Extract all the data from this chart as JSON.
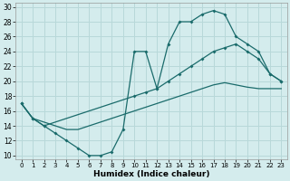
{
  "xlabel": "Humidex (Indice chaleur)",
  "bg_color": "#d4eced",
  "grid_color": "#b8d8d9",
  "line_color": "#1a6b6b",
  "xlim": [
    -0.5,
    23.5
  ],
  "ylim": [
    9.5,
    30.5
  ],
  "xticks": [
    0,
    1,
    2,
    3,
    4,
    5,
    6,
    7,
    8,
    9,
    10,
    11,
    12,
    13,
    14,
    15,
    16,
    17,
    18,
    19,
    20,
    21,
    22,
    23
  ],
  "yticks": [
    10,
    12,
    14,
    16,
    18,
    20,
    22,
    24,
    26,
    28,
    30
  ],
  "line1_x": [
    0,
    1,
    2,
    3,
    4,
    5,
    6,
    7,
    8,
    9,
    10,
    11,
    12,
    13,
    14,
    15,
    16,
    17,
    18,
    19,
    20,
    21,
    22,
    23
  ],
  "line1_y": [
    17,
    15,
    14,
    13,
    12,
    11,
    10,
    10,
    10.5,
    13.5,
    24,
    24,
    19,
    25,
    28,
    28,
    29,
    29.5,
    29,
    26,
    25,
    24,
    21,
    20
  ],
  "line1_markers": [
    true,
    true,
    true,
    true,
    true,
    true,
    true,
    true,
    true,
    true,
    true,
    true,
    true,
    true,
    true,
    true,
    true,
    true,
    true,
    true,
    true,
    true,
    true,
    true
  ],
  "line2_x": [
    0,
    1,
    2,
    10,
    11,
    12,
    13,
    14,
    15,
    16,
    17,
    18,
    19,
    20,
    21,
    22,
    23
  ],
  "line2_y": [
    17,
    15,
    14,
    18,
    18.5,
    19,
    20,
    21,
    22,
    23,
    24,
    24.5,
    25,
    24,
    23,
    21,
    20
  ],
  "line3_x": [
    0,
    1,
    2,
    3,
    4,
    5,
    6,
    7,
    8,
    9,
    10,
    11,
    12,
    13,
    14,
    15,
    16,
    17,
    18,
    19,
    20,
    21,
    22,
    23
  ],
  "line3_y": [
    17,
    15,
    14.5,
    14,
    13.5,
    13.5,
    14,
    14.5,
    15,
    15.5,
    16,
    16.5,
    17,
    17.5,
    18,
    18.5,
    19,
    19.5,
    19.8,
    19.5,
    19.2,
    19.0,
    19.0,
    19.0
  ]
}
